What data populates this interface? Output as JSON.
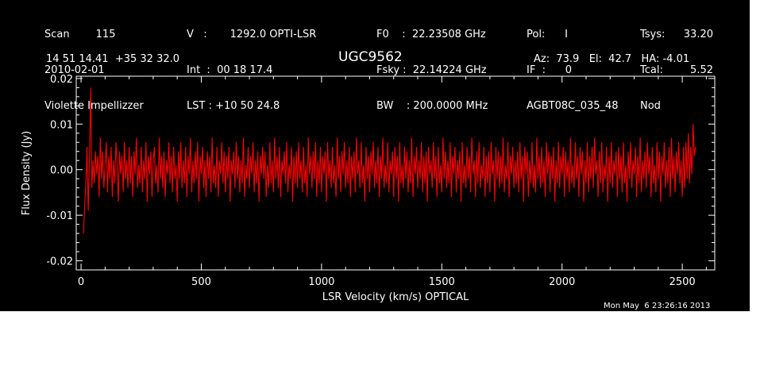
{
  "header": {
    "col1": [
      "Scan        115",
      "2010-02-01",
      "Violette Impellizzer"
    ],
    "col2": [
      "V   :       1292.0 OPTI-LSR",
      "Int  :  00 18 17.4",
      "LST : +10 50 24.8"
    ],
    "col3": [
      "F0    :  22.23508 GHz",
      "Fsky :  22.14224 GHz",
      "BW    : 200.0000 MHz"
    ],
    "col4": [
      "Pol:      I",
      "IF  :      0",
      "AGBT08C_035_48"
    ],
    "col5": [
      "Tsys:",
      "Tcal:",
      "Nod"
    ],
    "col6": [
      "33.20",
      "5.52",
      ""
    ],
    "coords": "14 51 14.41  +35 32 32.0",
    "source": "UGC9562",
    "pointing": "Az:  73.9   El:  42.7   HA: -4.01"
  },
  "timestamp": "Mon May  6 23:26:16 2013",
  "colors": {
    "background": "#000000",
    "axes": "#ffffff",
    "trace": "#ff0000"
  },
  "chart_data": {
    "type": "line",
    "xlabel": "LSR Velocity (km/s) OPTICAL",
    "ylabel": "Flux Density (Jy)",
    "xlim": [
      -20,
      2635
    ],
    "ylim": [
      -0.022,
      0.0205
    ],
    "x_ticks": [
      0,
      500,
      1000,
      1500,
      2000,
      2500
    ],
    "y_ticks": [
      -0.02,
      -0.01,
      0.0,
      0.01,
      0.02
    ],
    "x_tick_labels": [
      "0",
      "500",
      "1000",
      "1500",
      "2000",
      "2500"
    ],
    "y_tick_labels": [
      "-0.02",
      "-0.01",
      "0.00",
      "0.01",
      "0.02"
    ],
    "series": [
      {
        "x_start": 10,
        "x_end": 2595,
        "x_step": 5,
        "values": [
          -0.014,
          -0.008,
          -0.003,
          0.005,
          -0.009,
          0.003,
          0.018,
          -0.004,
          0.002,
          -0.003,
          0.004,
          -0.001,
          0.003,
          -0.006,
          0.007,
          -0.002,
          0.004,
          -0.004,
          0.001,
          0.006,
          -0.005,
          0.003,
          -0.002,
          0.005,
          -0.006,
          0.002,
          -0.003,
          0.006,
          0.001,
          -0.007,
          0.004,
          -0.001,
          0.003,
          -0.005,
          0.006,
          -0.002,
          0.002,
          -0.004,
          0.005,
          -0.003,
          0.003,
          -0.006,
          0.004,
          -0.001,
          0.007,
          -0.004,
          0.001,
          -0.003,
          0.005,
          -0.005,
          0.002,
          -0.002,
          0.006,
          -0.007,
          0.003,
          -0.001,
          0.004,
          -0.006,
          0.002,
          0.005,
          -0.003,
          0.001,
          -0.005,
          0.007,
          -0.002,
          0.003,
          -0.004,
          0.004,
          -0.006,
          0.002,
          -0.001,
          0.006,
          -0.003,
          0.003,
          -0.005,
          0.005,
          -0.002,
          0.001,
          -0.007,
          0.004,
          -0.002,
          0.006,
          -0.004,
          0.002,
          -0.003,
          0.005,
          -0.006,
          0.003,
          -0.001,
          0.007,
          -0.005,
          0.002,
          -0.003,
          0.004,
          -0.002,
          0.006,
          -0.007,
          0.003,
          -0.001,
          0.005,
          -0.004,
          0.002,
          -0.006,
          0.004,
          -0.002,
          0.003,
          -0.005,
          0.007,
          -0.003,
          0.001,
          -0.004,
          0.005,
          -0.006,
          0.002,
          -0.001,
          0.006,
          -0.003,
          0.004,
          -0.005,
          0.003,
          -0.002,
          0.005,
          -0.007,
          0.002,
          -0.001,
          0.004,
          -0.004,
          0.006,
          -0.002,
          0.003,
          -0.005,
          0.002,
          -0.003,
          0.007,
          -0.006,
          0.001,
          -0.002,
          0.005,
          -0.004,
          0.003,
          -0.001,
          0.006,
          -0.005,
          0.002,
          -0.003,
          0.004,
          -0.007,
          0.003,
          -0.001,
          0.005,
          -0.002,
          0.004,
          -0.006,
          0.001,
          -0.004,
          0.006,
          -0.003,
          0.002,
          -0.005,
          0.007,
          -0.002,
          0.003,
          -0.004,
          0.005,
          -0.006,
          0.002,
          -0.001,
          0.004,
          -0.003,
          0.006,
          -0.005,
          0.001,
          -0.002,
          0.005,
          -0.007,
          0.003,
          -0.003,
          0.004,
          -0.004,
          0.006,
          -0.002,
          0.002,
          -0.005,
          0.005,
          -0.003,
          0.001,
          -0.006,
          0.007,
          -0.001,
          0.003,
          -0.004,
          0.004,
          -0.002,
          0.006,
          -0.006,
          0.002,
          -0.003,
          0.005,
          -0.005,
          0.003,
          -0.001,
          0.004,
          -0.007,
          0.006,
          -0.002,
          0.002,
          -0.004,
          0.005,
          -0.003,
          0.001,
          -0.006,
          0.007,
          -0.002,
          0.003,
          -0.005,
          0.004,
          -0.001,
          0.006,
          -0.004,
          0.002,
          -0.003,
          0.005,
          -0.006,
          0.003,
          -0.002,
          0.004,
          -0.005,
          0.007,
          -0.001,
          0.002,
          -0.004,
          0.006,
          -0.003,
          0.001,
          -0.007,
          0.005,
          -0.002,
          0.003,
          -0.005,
          0.004,
          -0.001,
          0.006,
          -0.004,
          0.002,
          -0.003,
          0.005,
          -0.006,
          0.003,
          -0.002,
          0.007,
          -0.004,
          0.001,
          -0.003,
          0.006,
          -0.005,
          0.002,
          -0.001,
          0.004,
          -0.006,
          0.005,
          -0.002,
          0.003,
          -0.007,
          0.006,
          -0.003,
          0.001,
          -0.004,
          0.005,
          -0.002,
          0.004,
          -0.005,
          0.002,
          -0.003,
          0.007,
          -0.006,
          0.003,
          -0.001,
          0.005,
          -0.004,
          0.002,
          -0.002,
          0.006,
          -0.005,
          0.003,
          -0.003,
          0.004,
          -0.007,
          0.005,
          -0.001,
          0.002,
          -0.004,
          0.006,
          -0.002,
          0.003,
          -0.006,
          0.005,
          -0.003,
          0.001,
          -0.005,
          0.007,
          -0.002,
          0.004,
          -0.004,
          0.002,
          -0.003,
          0.006,
          -0.006,
          0.003,
          -0.001,
          0.005,
          -0.005,
          0.002,
          -0.002,
          0.004,
          -0.007,
          0.006,
          -0.003,
          0.001,
          -0.004,
          0.005,
          -0.002,
          0.003,
          -0.005,
          0.007,
          -0.001,
          0.002,
          -0.006,
          0.004,
          -0.003,
          0.006,
          -0.004,
          0.001,
          -0.002,
          0.005,
          -0.006,
          0.003,
          -0.003,
          0.004,
          -0.005,
          0.006,
          -0.001,
          0.002,
          -0.007,
          0.005,
          -0.002,
          0.004,
          -0.004,
          0.003,
          -0.003,
          0.007,
          -0.005,
          0.001,
          -0.002,
          0.006,
          -0.006,
          0.003,
          -0.001,
          0.005,
          -0.004,
          0.002,
          -0.003,
          0.004,
          -0.005,
          0.006,
          -0.002,
          0.003,
          -0.007,
          0.005,
          -0.001,
          0.004,
          -0.006,
          0.002,
          -0.003,
          0.006,
          -0.004,
          0.001,
          -0.005,
          0.007,
          -0.002,
          0.003,
          -0.004,
          0.005,
          -0.003,
          0.002,
          -0.006,
          0.006,
          -0.001,
          0.004,
          -0.005,
          0.003,
          -0.002,
          0.005,
          -0.007,
          0.002,
          -0.003,
          0.006,
          -0.004,
          0.003,
          -0.001,
          0.005,
          -0.006,
          0.004,
          -0.002,
          0.002,
          -0.005,
          0.007,
          -0.003,
          0.001,
          -0.004,
          0.006,
          -0.002,
          0.003,
          -0.006,
          0.005,
          -0.001,
          0.004,
          -0.007,
          0.002,
          -0.003,
          0.006,
          -0.005,
          0.003,
          -0.002,
          0.005,
          -0.004,
          0.007,
          -0.001,
          0.002,
          -0.006,
          0.004,
          -0.003,
          0.006,
          -0.005,
          0.001,
          -0.002,
          0.005,
          -0.007,
          0.003,
          -0.003,
          0.006,
          -0.004,
          0.002,
          -0.001,
          0.004,
          -0.006,
          0.005,
          -0.002,
          0.003,
          -0.005,
          0.006,
          -0.003,
          0.001,
          -0.007,
          0.004,
          -0.002,
          0.006,
          -0.004,
          0.002,
          -0.001,
          0.005,
          -0.006,
          0.003,
          -0.003,
          0.007,
          -0.005,
          0.002,
          -0.002,
          0.004,
          -0.004,
          0.006,
          -0.001,
          0.003,
          -0.006,
          0.005,
          -0.003,
          0.001,
          -0.005,
          0.006,
          -0.002,
          0.004,
          -0.007,
          0.003,
          -0.001,
          0.006,
          -0.004,
          0.002,
          -0.003,
          0.005,
          -0.006,
          0.007,
          -0.002,
          0.003,
          -0.005,
          0.004,
          -0.001,
          0.006,
          -0.003,
          0.002,
          -0.006,
          0.005,
          -0.004,
          0.006,
          -0.002,
          0.008,
          -0.003,
          0.005,
          -0.001,
          0.01,
          0.003,
          0.005
        ]
      }
    ]
  }
}
